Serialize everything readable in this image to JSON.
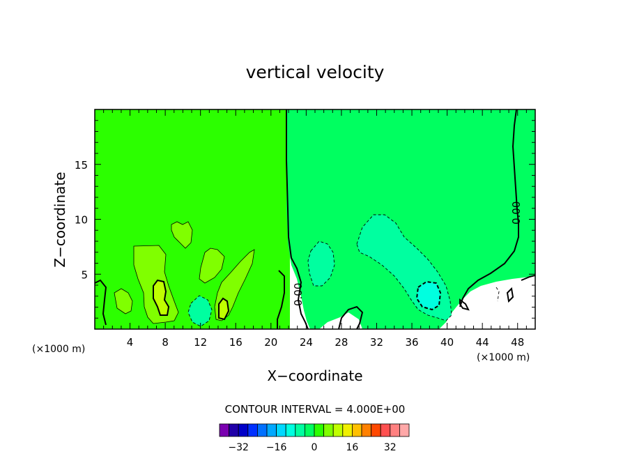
{
  "chart_data": {
    "type": "contour",
    "title": "vertical velocity",
    "xlabel": "X−coordinate",
    "ylabel": "Z−coordinate",
    "x_unit": "(×1000 m)",
    "xlim": [
      0,
      50
    ],
    "ylim": [
      0,
      20
    ],
    "x_ticks": [
      4,
      8,
      12,
      16,
      20,
      24,
      28,
      32,
      36,
      40,
      44,
      48
    ],
    "y_ticks": [
      5,
      10,
      15
    ],
    "contour_interval_text": "CONTOUR INTERVAL = 4.000E+00",
    "contour_label": "0.00",
    "colorbar": {
      "levels": [
        -36,
        -32,
        -28,
        -24,
        -20,
        -16,
        -12,
        -8,
        -4,
        0,
        4,
        8,
        12,
        16,
        20,
        24,
        28,
        32,
        36
      ],
      "tick_values": [
        -32,
        -16,
        0,
        16,
        32
      ],
      "tick_labels": [
        "−32",
        "−16",
        "0",
        "16",
        "32"
      ],
      "colors": [
        "#7a00b0",
        "#2000a8",
        "#0000c8",
        "#0030ff",
        "#0070ff",
        "#00a8ff",
        "#00d8ff",
        "#00ffe0",
        "#00ffa0",
        "#00ff60",
        "#2cff00",
        "#80ff00",
        "#c0ff00",
        "#f0f000",
        "#ffc000",
        "#ff8000",
        "#ff4800",
        "#ff5050",
        "#ff8080",
        "#ffa8a8"
      ]
    },
    "fields": {
      "background_left": "#2cff00",
      "background_right": "#00ff60",
      "positive_weak": "#80ff00",
      "positive_strong": "#c0ff00",
      "negative_weak": "#00ffa0",
      "negative_strong": "#00ffe0"
    }
  }
}
